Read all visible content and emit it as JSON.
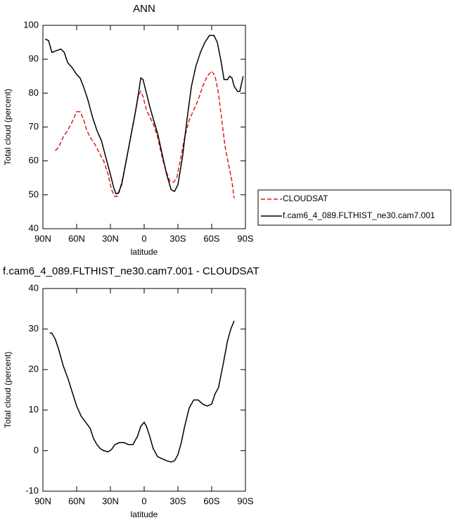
{
  "chart_data": [
    {
      "type": "line",
      "title": "ANN",
      "xlabel": "latitude",
      "ylabel": "Total cloud (percent)",
      "xlim": [
        90,
        -90
      ],
      "xticks": [
        {
          "value": 90,
          "label": "90N"
        },
        {
          "value": 60,
          "label": "60N"
        },
        {
          "value": 30,
          "label": "30N"
        },
        0,
        {
          "value": -30,
          "label": "30S"
        },
        {
          "value": -60,
          "label": "60S"
        },
        {
          "value": -90,
          "label": "90S"
        }
      ],
      "ylim": [
        40,
        100
      ],
      "yticks": [
        40,
        50,
        60,
        70,
        80,
        90,
        100
      ],
      "legend": "right",
      "series": [
        {
          "name": "CLOUDSAT",
          "color": "#e31a1c",
          "dash": true,
          "x": [
            79,
            76,
            72,
            68,
            64,
            60,
            57,
            54,
            51,
            48,
            44,
            40,
            36,
            32,
            29,
            26,
            24,
            22,
            19,
            16,
            12,
            8,
            5,
            3,
            1,
            -2,
            -5,
            -8,
            -12,
            -16,
            -20,
            -23,
            -26,
            -29,
            -32,
            -36,
            -40,
            -44,
            -48,
            -52,
            -56,
            -60,
            -63,
            -66,
            -69,
            -72,
            -75,
            -78,
            -80
          ],
          "values": [
            63,
            64,
            67,
            69,
            71.5,
            74.5,
            74.5,
            72.5,
            69,
            67,
            65,
            62.5,
            60,
            56,
            51.5,
            49.5,
            49.5,
            51,
            55,
            60,
            67,
            74,
            79.5,
            80.5,
            79,
            75,
            73,
            71,
            67,
            61,
            56.5,
            54,
            53.7,
            55,
            60,
            67,
            72,
            75,
            78,
            82,
            85,
            86.5,
            85,
            80,
            72,
            64,
            59,
            54,
            49
          ]
        },
        {
          "name": "f.cam6_4_089.FLTHIST_ne30.cam7.001",
          "color": "#000000",
          "dash": false,
          "x": [
            88,
            85,
            82,
            78,
            74,
            71,
            68,
            64,
            60,
            57,
            54,
            50,
            46,
            42,
            38,
            34,
            30,
            27,
            25,
            23,
            20,
            16,
            12,
            8,
            5,
            3,
            1,
            -2,
            -5,
            -8,
            -12,
            -16,
            -20,
            -24,
            -27,
            -30,
            -34,
            -38,
            -42,
            -46,
            -50,
            -54,
            -58,
            -62,
            -65,
            -68,
            -71,
            -74,
            -76,
            -78,
            -80,
            -83,
            -85,
            -88
          ],
          "values": [
            96,
            95.5,
            92,
            92.5,
            93,
            92,
            89,
            87.5,
            85.5,
            84.5,
            82,
            78,
            73,
            69,
            66,
            61,
            56,
            52,
            50.3,
            50.5,
            53,
            60,
            67,
            74,
            80,
            84.5,
            84,
            80,
            76,
            72.5,
            68,
            62,
            56,
            51.5,
            51,
            53,
            61,
            72,
            82,
            88,
            92,
            95,
            97,
            97,
            95,
            90,
            84,
            84,
            85,
            84.5,
            82,
            80.5,
            80.5,
            85
          ]
        }
      ]
    },
    {
      "type": "line",
      "title": "f.cam6_4_089.FLTHIST_ne30.cam7.001 - CLOUDSAT",
      "xlabel": "latitude",
      "ylabel": "Total cloud (percent)",
      "xlim": [
        90,
        -90
      ],
      "xticks": [
        {
          "value": 90,
          "label": "90N"
        },
        {
          "value": 60,
          "label": "60N"
        },
        {
          "value": 30,
          "label": "30N"
        },
        0,
        {
          "value": -30,
          "label": "30S"
        },
        {
          "value": -60,
          "label": "60S"
        },
        {
          "value": -90,
          "label": "90S"
        }
      ],
      "ylim": [
        -10,
        40
      ],
      "yticks": [
        -10,
        0,
        10,
        20,
        30,
        40
      ],
      "series": [
        {
          "color": "#000000",
          "dash": false,
          "x": [
            84,
            82,
            79,
            76,
            72,
            68,
            64,
            60,
            56,
            52,
            48,
            45,
            42,
            39,
            36,
            32,
            29,
            26,
            22,
            18,
            14,
            10,
            6,
            3,
            0,
            -2,
            -5,
            -8,
            -12,
            -16,
            -20,
            -24,
            -27,
            -30,
            -33,
            -36,
            -40,
            -44,
            -48,
            -52,
            -56,
            -60,
            -63,
            -66,
            -70,
            -74,
            -77,
            -80
          ],
          "values": [
            29,
            29,
            27.5,
            25,
            21,
            18,
            14.5,
            11,
            8.5,
            7,
            5.5,
            3,
            1.5,
            0.5,
            0,
            -0.3,
            0.3,
            1.5,
            2,
            2,
            1.5,
            1.5,
            3.5,
            6,
            7,
            6,
            3.5,
            0.5,
            -1.5,
            -2,
            -2.5,
            -2.8,
            -2.5,
            -1,
            2,
            6,
            10.5,
            12.5,
            12.5,
            11.5,
            11,
            11.5,
            14,
            15.5,
            21,
            27,
            30,
            32
          ]
        }
      ]
    }
  ]
}
